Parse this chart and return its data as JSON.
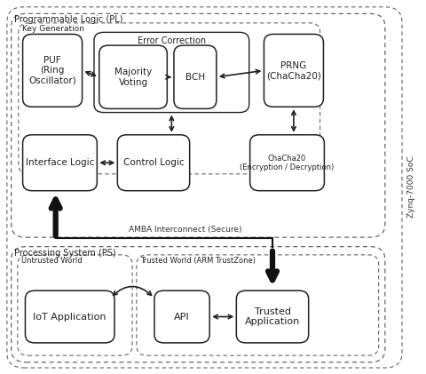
{
  "fig_width": 4.8,
  "fig_height": 4.21,
  "dpi": 100,
  "bg_color": "#ffffff",
  "zynq_label": "Zynq-7000 SoC",
  "pl_label": "Programmable Logic (PL)",
  "kg_label": "Key Generation",
  "ps_label": "Processing System (PS)",
  "amba_label": "AMBA Interconnect (Secure)",
  "untrusted_label": "Untrusted World",
  "trusted_w_label": "Trusted World (ARM TrustZone)",
  "puf_label": "PUF\n(Ring\nOscillator)",
  "ec_label": "Error Correction",
  "mv_label": "Majority\nVoting",
  "bch_label": "BCH",
  "prng_label": "PRNG\n(ChaCha20)",
  "iface_label": "Interface Logic",
  "ctrl_label": "Control Logic",
  "cc20_label": "ChaCha20\n(Encryption / Decryption)",
  "iot_label": "IoT Application",
  "api_label": "API",
  "trusted_label": "Trusted\nApplication"
}
